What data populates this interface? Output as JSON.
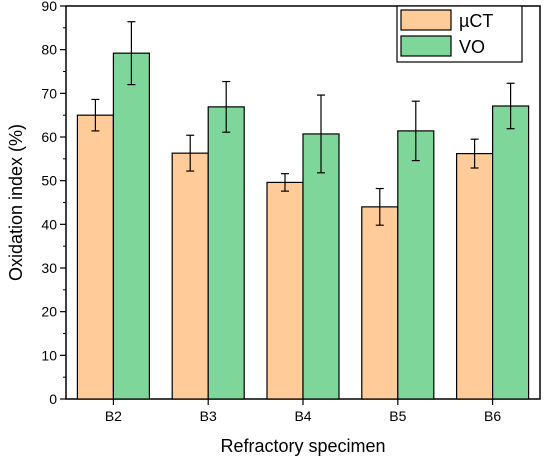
{
  "chart_data": {
    "type": "bar",
    "categories": [
      "B2",
      "B3",
      "B4",
      "B5",
      "B6"
    ],
    "series": [
      {
        "name": "µCT",
        "color": "#ffcc99",
        "values": [
          65.0,
          56.3,
          49.6,
          44.0,
          56.2
        ],
        "errors": [
          3.6,
          4.1,
          2.0,
          4.2,
          3.3
        ]
      },
      {
        "name": "VO",
        "color": "#7ed69a",
        "values": [
          79.2,
          66.9,
          60.7,
          61.4,
          67.1
        ],
        "errors": [
          7.2,
          5.8,
          8.9,
          6.8,
          5.2
        ]
      }
    ],
    "xlabel": "Refractory specimen",
    "ylabel": "Oxidation index (%)",
    "ylim": [
      0,
      90
    ],
    "yticks": [
      0,
      10,
      20,
      30,
      40,
      50,
      60,
      70,
      80,
      90
    ],
    "legend_position": "top-right",
    "grid": false
  }
}
